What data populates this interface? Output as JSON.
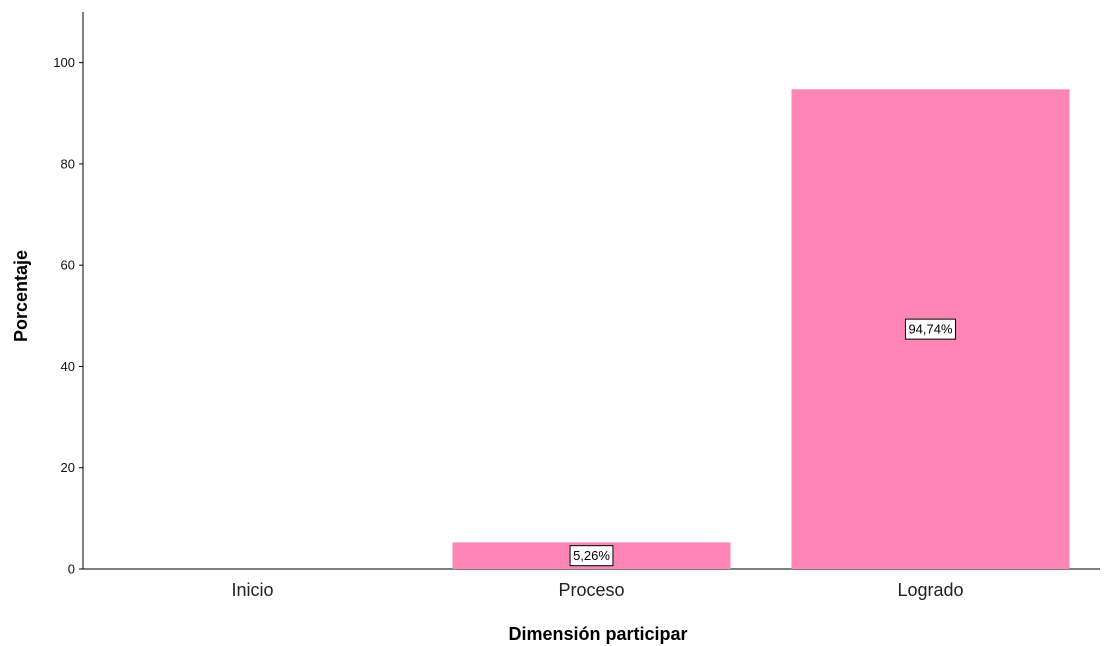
{
  "chart_data": {
    "type": "bar",
    "categories": [
      "Inicio",
      "Proceso",
      "Logrado"
    ],
    "values": [
      0,
      5.26,
      94.74
    ],
    "data_labels": [
      "",
      "5,26%",
      "94,74%"
    ],
    "xlabel": "Dimensión participar",
    "ylabel": "Porcentaje",
    "ylim": [
      0,
      110
    ],
    "yticks": [
      0,
      20,
      40,
      60,
      80,
      100
    ],
    "bar_color": "#FF85B7",
    "grid": false
  }
}
